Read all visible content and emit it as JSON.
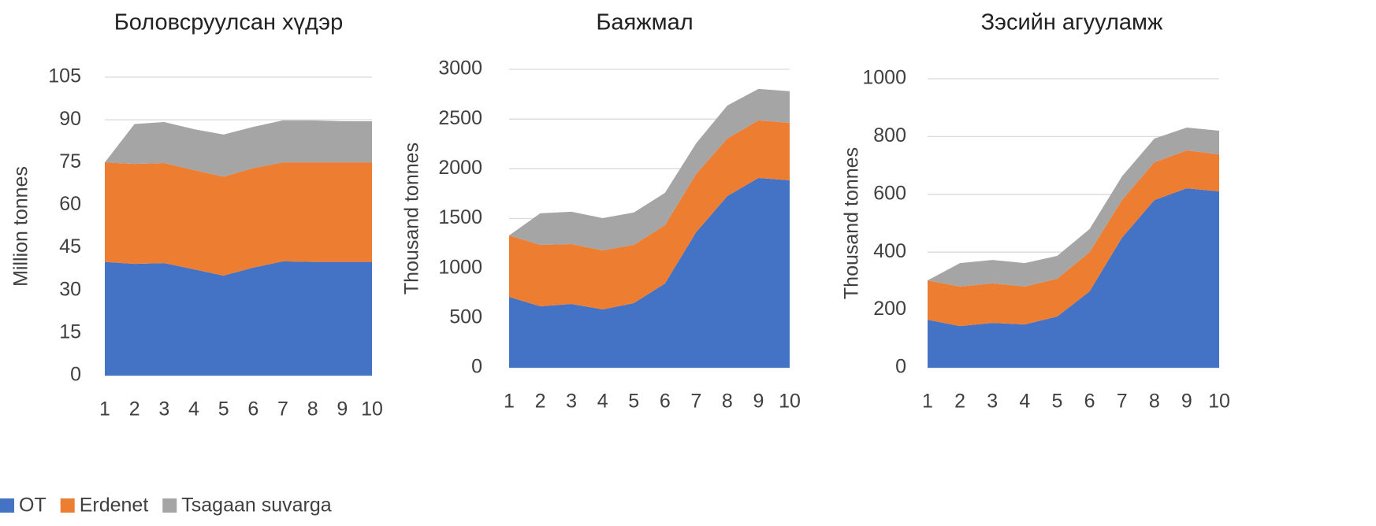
{
  "chart_data": [
    {
      "type": "area",
      "title": "Боловсруулсан хүдэр",
      "ylabel": "Million tonnes",
      "categories": [
        1,
        2,
        3,
        4,
        5,
        6,
        7,
        8,
        9,
        10
      ],
      "series": [
        {
          "name": "OT",
          "color": "#4472c4",
          "values": [
            40,
            39.3,
            39.6,
            37.4,
            35.2,
            38,
            40.2,
            40,
            40,
            40
          ]
        },
        {
          "name": "Erdenet",
          "color": "#ed7d31",
          "values": [
            35,
            35.2,
            35.2,
            34.9,
            34.8,
            35,
            34.8,
            35,
            35,
            35
          ]
        },
        {
          "name": "Tsagaan suvarga",
          "color": "#a5a5a5",
          "values": [
            0,
            14,
            14.4,
            14.4,
            14.8,
            14.5,
            14.8,
            14.8,
            14.5,
            14.5
          ]
        }
      ],
      "ylim": [
        0,
        105
      ],
      "yticks": [
        0,
        15,
        30,
        45,
        60,
        75,
        90,
        105
      ],
      "grid": true
    },
    {
      "type": "area",
      "title": "Баяжмал",
      "ylabel": "Thousand tonnes",
      "categories": [
        1,
        2,
        3,
        4,
        5,
        6,
        7,
        8,
        9,
        10
      ],
      "series": [
        {
          "name": "OT",
          "color": "#4472c4",
          "values": [
            712,
            617,
            641,
            586,
            649,
            847,
            1362,
            1726,
            1908,
            1884
          ]
        },
        {
          "name": "Erdenet",
          "color": "#ed7d31",
          "values": [
            618,
            618,
            602,
            594,
            586,
            586,
            586,
            578,
            578,
            578
          ]
        },
        {
          "name": "Tsagaan suvarga",
          "color": "#a5a5a5",
          "values": [
            0,
            317,
            325,
            324,
            325,
            325,
            308,
            332,
            317,
            317
          ]
        }
      ],
      "ylim": [
        0,
        3000
      ],
      "yticks": [
        0,
        500,
        1000,
        1500,
        2000,
        2500,
        3000
      ],
      "grid": true
    },
    {
      "type": "area",
      "title": "Зэсийн агууламж",
      "ylabel": "Thousand tonnes",
      "categories": [
        1,
        2,
        3,
        4,
        5,
        6,
        7,
        8,
        9,
        10
      ],
      "series": [
        {
          "name": "OT",
          "color": "#4472c4",
          "values": [
            166,
            144,
            155,
            150,
            177,
            264,
            450,
            580,
            621,
            610
          ]
        },
        {
          "name": "Erdenet",
          "color": "#ed7d31",
          "values": [
            136,
            137,
            137,
            131,
            131,
            136,
            130,
            131,
            131,
            128
          ]
        },
        {
          "name": "Tsagaan suvarga",
          "color": "#a5a5a5",
          "values": [
            0,
            81,
            81,
            81,
            79,
            80,
            82,
            82,
            79,
            82
          ]
        }
      ],
      "ylim": [
        0,
        1000
      ],
      "yticks": [
        0,
        200,
        400,
        600,
        800,
        1000
      ],
      "grid": true
    }
  ]
}
